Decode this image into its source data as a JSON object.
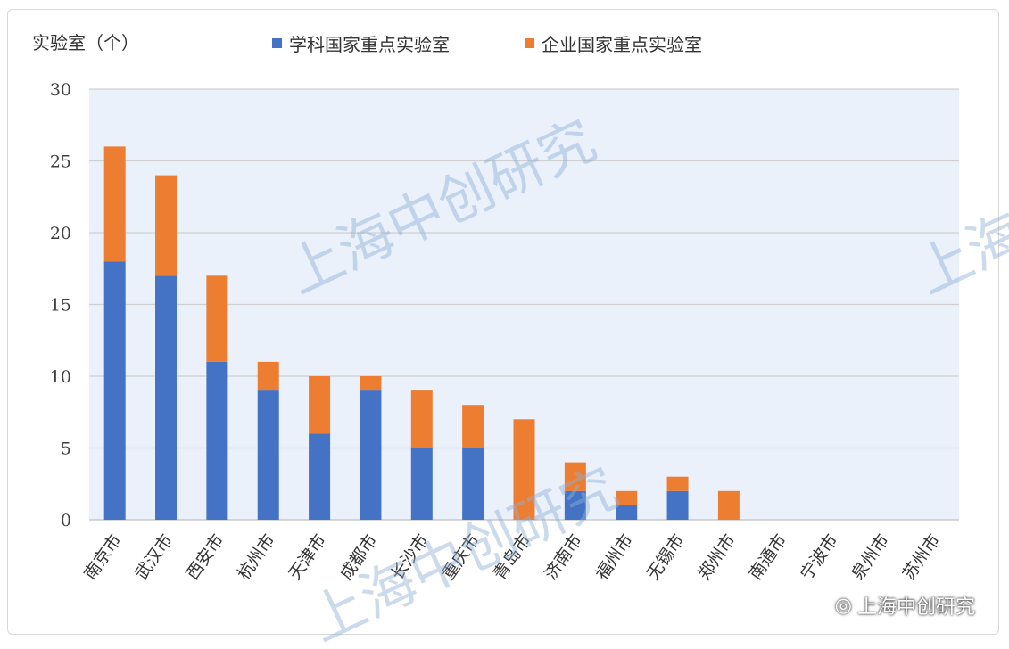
{
  "chart_data": {
    "type": "bar",
    "stacked": true,
    "ylabel": "实验室（个）",
    "ylim": [
      0,
      30
    ],
    "yticks": [
      0,
      5,
      10,
      15,
      20,
      25,
      30
    ],
    "grid": true,
    "legend_position": "top",
    "categories": [
      "南京市",
      "武汉市",
      "西安市",
      "杭州市",
      "天津市",
      "成都市",
      "长沙市",
      "重庆市",
      "青岛市",
      "济南市",
      "福州市",
      "无锡市",
      "郑州市",
      "南通市",
      "宁波市",
      "泉州市",
      "苏州市"
    ],
    "series": [
      {
        "name": "学科国家重点实验室",
        "color": "#4472c4",
        "values": [
          18,
          17,
          11,
          9,
          6,
          9,
          5,
          5,
          0,
          2,
          1,
          2,
          0,
          0,
          0,
          0,
          0
        ]
      },
      {
        "name": "企业国家重点实验室",
        "color": "#ed7d31",
        "values": [
          8,
          7,
          6,
          2,
          4,
          1,
          4,
          3,
          7,
          2,
          1,
          1,
          2,
          0,
          0,
          0,
          0
        ]
      }
    ]
  },
  "watermark": {
    "text": "上海中创研究",
    "color": "#8fb0d6"
  },
  "credit": {
    "icon": "wechat-icon",
    "text": "上海中创研究"
  }
}
